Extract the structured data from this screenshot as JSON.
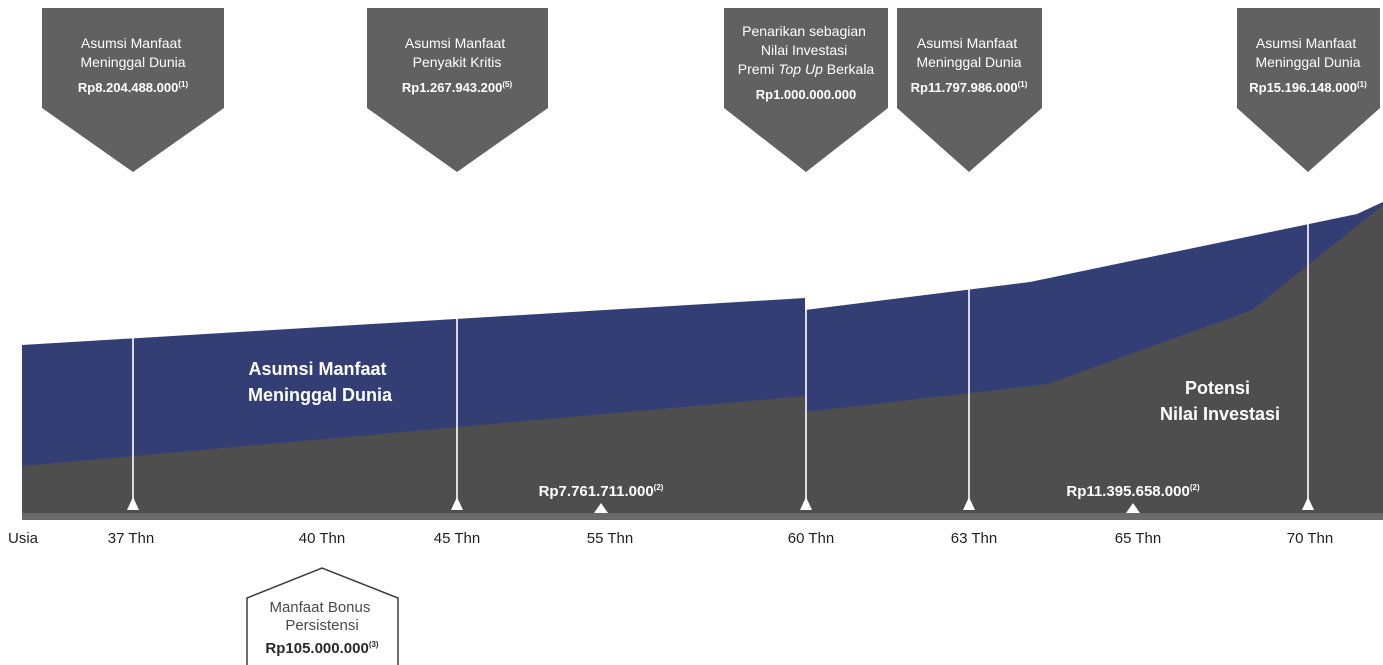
{
  "colors": {
    "investment_area": "#4e4e4e",
    "death_benefit_band": "#333e74",
    "callout": "#616161",
    "axis": "#6a6a6a",
    "bonus_border": "#3a3a3a"
  },
  "band_labels": {
    "death_benefit": [
      "Asumsi Manfaat",
      "Meninggal Dunia"
    ],
    "investment": [
      "Potensi",
      "Nilai Investasi"
    ]
  },
  "callouts": [
    {
      "lines": [
        "Asumsi Manfaat",
        "Meninggal Dunia"
      ],
      "amount": "Rp8.204.488.000",
      "note": "(1)"
    },
    {
      "lines": [
        "Asumsi Manfaat",
        "Penyakit Kritis"
      ],
      "amount": "Rp1.267.943.200",
      "note": "(5)"
    },
    {
      "lines": [
        "Penarikan sebagian",
        "Nilai Investasi",
        "Premi Top Up Berkala"
      ],
      "amount": "Rp1.000.000.000",
      "note": ""
    },
    {
      "lines": [
        "Asumsi Manfaat",
        "Meninggal Dunia"
      ],
      "amount": "Rp11.797.986.000",
      "note": "(1)"
    },
    {
      "lines": [
        "Asumsi Manfaat",
        "Meninggal Dunia"
      ],
      "amount": "Rp15.196.148.000",
      "note": "(1)"
    }
  ],
  "investment_values": [
    {
      "amount": "Rp7.761.711.000",
      "note": "(2)"
    },
    {
      "amount": "Rp11.395.658.000",
      "note": "(2)"
    }
  ],
  "axis": {
    "label": "Usia",
    "ticks": [
      "37 Thn",
      "40 Thn",
      "45 Thn",
      "55 Thn",
      "60 Thn",
      "63 Thn",
      "65 Thn",
      "70 Thn"
    ]
  },
  "bonus": {
    "lines": [
      "Manfaat Bonus",
      "Persistensi"
    ],
    "amount": "Rp105.000.000",
    "note": "(3)"
  }
}
